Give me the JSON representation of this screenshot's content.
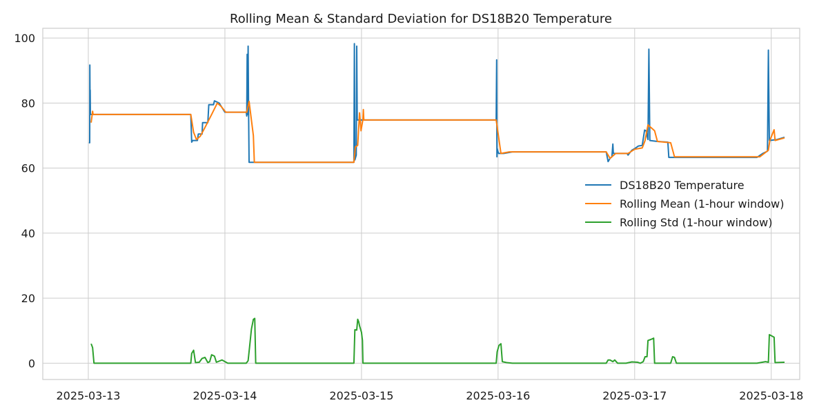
{
  "chart_data": {
    "type": "line",
    "title": "Rolling Mean & Standard Deviation for DS18B20 Temperature",
    "xlabel": "",
    "ylabel": "",
    "xlim": [
      "2025-03-12 16:00",
      "2025-03-18 05:00"
    ],
    "ylim": [
      -5,
      103
    ],
    "x_ticks": [
      "2025-03-13",
      "2025-03-14",
      "2025-03-15",
      "2025-03-16",
      "2025-03-17",
      "2025-03-18"
    ],
    "y_ticks": [
      0,
      20,
      40,
      60,
      80,
      100
    ],
    "grid": true,
    "legend_position": "center-right",
    "colors": {
      "temperature": "#1f77b4",
      "mean": "#ff7f0e",
      "std": "#2ca02c"
    },
    "series": [
      {
        "name": "DS18B20 Temperature",
        "points": [
          [
            "2025-03-13 00:06",
            67.8
          ],
          [
            "2025-03-13 00:15",
            67.8
          ],
          [
            "2025-03-13 00:16",
            91.7
          ],
          [
            "2025-03-13 00:19",
            76.5
          ],
          [
            "2025-03-13 00:20",
            84.0
          ],
          [
            "2025-03-13 00:22",
            76.5
          ],
          [
            "2025-03-13 18:00",
            76.5
          ],
          [
            "2025-03-13 18:10",
            68.0
          ],
          [
            "2025-03-13 18:20",
            68.5
          ],
          [
            "2025-03-13 19:10",
            68.5
          ],
          [
            "2025-03-13 19:20",
            70.5
          ],
          [
            "2025-03-13 20:00",
            70.5
          ],
          [
            "2025-03-13 20:05",
            74.0
          ],
          [
            "2025-03-13 21:00",
            74.0
          ],
          [
            "2025-03-13 21:10",
            79.5
          ],
          [
            "2025-03-13 22:00",
            79.5
          ],
          [
            "2025-03-13 22:10",
            80.7
          ],
          [
            "2025-03-13 23:00",
            80.0
          ],
          [
            "2025-03-14 00:00",
            77.2
          ],
          [
            "2025-03-14 03:45",
            77.2
          ],
          [
            "2025-03-14 03:50",
            76.0
          ],
          [
            "2025-03-14 03:55",
            95.0
          ],
          [
            "2025-03-14 04:00",
            76.5
          ],
          [
            "2025-03-14 04:05",
            97.5
          ],
          [
            "2025-03-14 04:10",
            77.0
          ],
          [
            "2025-03-14 04:15",
            61.8
          ],
          [
            "2025-03-14 22:40",
            61.8
          ],
          [
            "2025-03-14 22:45",
            98.3
          ],
          [
            "2025-03-14 22:50",
            62.5
          ],
          [
            "2025-03-14 23:05",
            64.0
          ],
          [
            "2025-03-14 23:10",
            97.5
          ],
          [
            "2025-03-14 23:15",
            74.8
          ],
          [
            "2025-03-15 23:40",
            74.8
          ],
          [
            "2025-03-15 23:45",
            93.3
          ],
          [
            "2025-03-15 23:48",
            63.5
          ],
          [
            "2025-03-15 23:50",
            66.0
          ],
          [
            "2025-03-16 00:05",
            64.5
          ],
          [
            "2025-03-16 01:00",
            64.5
          ],
          [
            "2025-03-16 02:30",
            65.0
          ],
          [
            "2025-03-16 19:00",
            65.0
          ],
          [
            "2025-03-16 19:20",
            62.0
          ],
          [
            "2025-03-16 19:40",
            63.0
          ],
          [
            "2025-03-16 20:00",
            63.5
          ],
          [
            "2025-03-16 20:10",
            67.4
          ],
          [
            "2025-03-16 20:15",
            64.5
          ],
          [
            "2025-03-16 22:40",
            64.5
          ],
          [
            "2025-03-16 22:50",
            64.0
          ],
          [
            "2025-03-16 23:30",
            65.5
          ],
          [
            "2025-03-17 00:00",
            66.0
          ],
          [
            "2025-03-17 00:40",
            66.8
          ],
          [
            "2025-03-17 01:20",
            67.0
          ],
          [
            "2025-03-17 01:45",
            71.7
          ],
          [
            "2025-03-17 02:00",
            71.5
          ],
          [
            "2025-03-17 02:20",
            68.8
          ],
          [
            "2025-03-17 02:30",
            96.6
          ],
          [
            "2025-03-17 02:40",
            68.5
          ],
          [
            "2025-03-17 04:00",
            68.2
          ],
          [
            "2025-03-17 05:50",
            68.0
          ],
          [
            "2025-03-17 06:00",
            63.3
          ],
          [
            "2025-03-17 21:30",
            63.3
          ],
          [
            "2025-03-17 22:30",
            64.5
          ],
          [
            "2025-03-17 23:20",
            65.2
          ],
          [
            "2025-03-17 23:30",
            96.3
          ],
          [
            "2025-03-17 23:40",
            68.5
          ],
          [
            "2025-03-18 01:00",
            68.8
          ],
          [
            "2025-03-18 02:20",
            69.5
          ]
        ]
      },
      {
        "name": "Rolling Mean (1-hour window)",
        "points": [
          [
            "2025-03-13 00:30",
            74.0
          ],
          [
            "2025-03-13 00:45",
            77.5
          ],
          [
            "2025-03-13 00:50",
            76.5
          ],
          [
            "2025-03-13 18:00",
            76.5
          ],
          [
            "2025-03-13 18:30",
            71.0
          ],
          [
            "2025-03-13 19:00",
            68.8
          ],
          [
            "2025-03-13 19:40",
            69.8
          ],
          [
            "2025-03-13 20:30",
            72.5
          ],
          [
            "2025-03-13 21:40",
            76.5
          ],
          [
            "2025-03-13 22:40",
            80.0
          ],
          [
            "2025-03-13 23:20",
            79.0
          ],
          [
            "2025-03-14 00:10",
            77.2
          ],
          [
            "2025-03-14 03:50",
            77.2
          ],
          [
            "2025-03-14 04:15",
            80.5
          ],
          [
            "2025-03-14 05:00",
            70.0
          ],
          [
            "2025-03-14 05:10",
            61.8
          ],
          [
            "2025-03-14 22:40",
            61.8
          ],
          [
            "2025-03-14 22:55",
            66.5
          ],
          [
            "2025-03-14 23:20",
            67.0
          ],
          [
            "2025-03-14 23:40",
            77.0
          ],
          [
            "2025-03-14 23:55",
            71.5
          ],
          [
            "2025-03-15 00:15",
            75.0
          ],
          [
            "2025-03-15 00:20",
            78.0
          ],
          [
            "2025-03-15 00:25",
            74.8
          ],
          [
            "2025-03-15 23:40",
            74.8
          ],
          [
            "2025-03-16 00:30",
            64.5
          ],
          [
            "2025-03-16 02:00",
            65.0
          ],
          [
            "2025-03-16 19:00",
            65.0
          ],
          [
            "2025-03-16 19:40",
            63.0
          ],
          [
            "2025-03-16 20:40",
            64.5
          ],
          [
            "2025-03-16 22:50",
            64.5
          ],
          [
            "2025-03-17 00:00",
            65.8
          ],
          [
            "2025-03-17 01:20",
            66.2
          ],
          [
            "2025-03-17 01:50",
            68.5
          ],
          [
            "2025-03-17 02:20",
            73.3
          ],
          [
            "2025-03-17 03:30",
            71.5
          ],
          [
            "2025-03-17 04:00",
            68.2
          ],
          [
            "2025-03-17 06:20",
            67.8
          ],
          [
            "2025-03-17 07:00",
            63.5
          ],
          [
            "2025-03-17 22:00",
            63.5
          ],
          [
            "2025-03-17 23:30",
            65.5
          ],
          [
            "2025-03-17 23:45",
            68.5
          ],
          [
            "2025-03-18 00:30",
            71.8
          ],
          [
            "2025-03-18 00:40",
            68.5
          ],
          [
            "2025-03-18 02:20",
            69.3
          ]
        ]
      },
      {
        "name": "Rolling Std (1-hour window)",
        "points": [
          [
            "2025-03-13 00:30",
            6.0
          ],
          [
            "2025-03-13 00:45",
            4.8
          ],
          [
            "2025-03-13 01:00",
            0.0
          ],
          [
            "2025-03-13 18:00",
            0.0
          ],
          [
            "2025-03-13 18:10",
            3.0
          ],
          [
            "2025-03-13 18:30",
            4.0
          ],
          [
            "2025-03-13 18:50",
            0.2
          ],
          [
            "2025-03-13 19:30",
            0.3
          ],
          [
            "2025-03-13 20:00",
            1.5
          ],
          [
            "2025-03-13 20:30",
            1.8
          ],
          [
            "2025-03-13 21:00",
            0.2
          ],
          [
            "2025-03-13 21:20",
            0.5
          ],
          [
            "2025-03-13 21:40",
            2.6
          ],
          [
            "2025-03-13 22:10",
            2.2
          ],
          [
            "2025-03-13 22:30",
            0.3
          ],
          [
            "2025-03-13 23:30",
            1.0
          ],
          [
            "2025-03-14 00:30",
            0.0
          ],
          [
            "2025-03-14 03:45",
            0.0
          ],
          [
            "2025-03-14 04:05",
            0.8
          ],
          [
            "2025-03-14 04:20",
            5.0
          ],
          [
            "2025-03-14 04:40",
            10.5
          ],
          [
            "2025-03-14 05:00",
            13.5
          ],
          [
            "2025-03-14 05:15",
            13.8
          ],
          [
            "2025-03-14 05:25",
            0.0
          ],
          [
            "2025-03-14 22:40",
            0.0
          ],
          [
            "2025-03-14 22:50",
            10.3
          ],
          [
            "2025-03-14 23:10",
            10.2
          ],
          [
            "2025-03-14 23:20",
            13.5
          ],
          [
            "2025-03-14 23:30",
            12.8
          ],
          [
            "2025-03-14 23:40",
            11.5
          ],
          [
            "2025-03-15 00:00",
            9.5
          ],
          [
            "2025-03-15 00:10",
            7.0
          ],
          [
            "2025-03-15 00:15",
            0.0
          ],
          [
            "2025-03-15 23:40",
            0.0
          ],
          [
            "2025-03-15 23:50",
            3.5
          ],
          [
            "2025-03-16 00:10",
            5.5
          ],
          [
            "2025-03-16 00:30",
            6.0
          ],
          [
            "2025-03-16 00:45",
            0.5
          ],
          [
            "2025-03-16 01:30",
            0.2
          ],
          [
            "2025-03-16 02:30",
            0.0
          ],
          [
            "2025-03-16 19:00",
            0.0
          ],
          [
            "2025-03-16 19:20",
            1.0
          ],
          [
            "2025-03-16 19:40",
            1.0
          ],
          [
            "2025-03-16 20:10",
            0.5
          ],
          [
            "2025-03-16 20:30",
            1.0
          ],
          [
            "2025-03-16 21:00",
            0.0
          ],
          [
            "2025-03-16 22:30",
            0.0
          ],
          [
            "2025-03-16 23:30",
            0.4
          ],
          [
            "2025-03-17 00:30",
            0.3
          ],
          [
            "2025-03-17 01:00",
            0.0
          ],
          [
            "2025-03-17 01:30",
            0.5
          ],
          [
            "2025-03-17 01:50",
            2.0
          ],
          [
            "2025-03-17 02:10",
            2.0
          ],
          [
            "2025-03-17 02:20",
            7.0
          ],
          [
            "2025-03-17 02:50",
            7.3
          ],
          [
            "2025-03-17 03:20",
            7.7
          ],
          [
            "2025-03-17 03:30",
            0.0
          ],
          [
            "2025-03-17 06:20",
            0.0
          ],
          [
            "2025-03-17 06:40",
            2.0
          ],
          [
            "2025-03-17 07:00",
            1.8
          ],
          [
            "2025-03-17 07:20",
            0.0
          ],
          [
            "2025-03-17 21:30",
            0.0
          ],
          [
            "2025-03-17 23:00",
            0.5
          ],
          [
            "2025-03-17 23:30",
            0.3
          ],
          [
            "2025-03-17 23:40",
            8.8
          ],
          [
            "2025-03-18 00:30",
            8.0
          ],
          [
            "2025-03-18 00:40",
            0.2
          ],
          [
            "2025-03-18 02:20",
            0.3
          ]
        ]
      }
    ]
  }
}
